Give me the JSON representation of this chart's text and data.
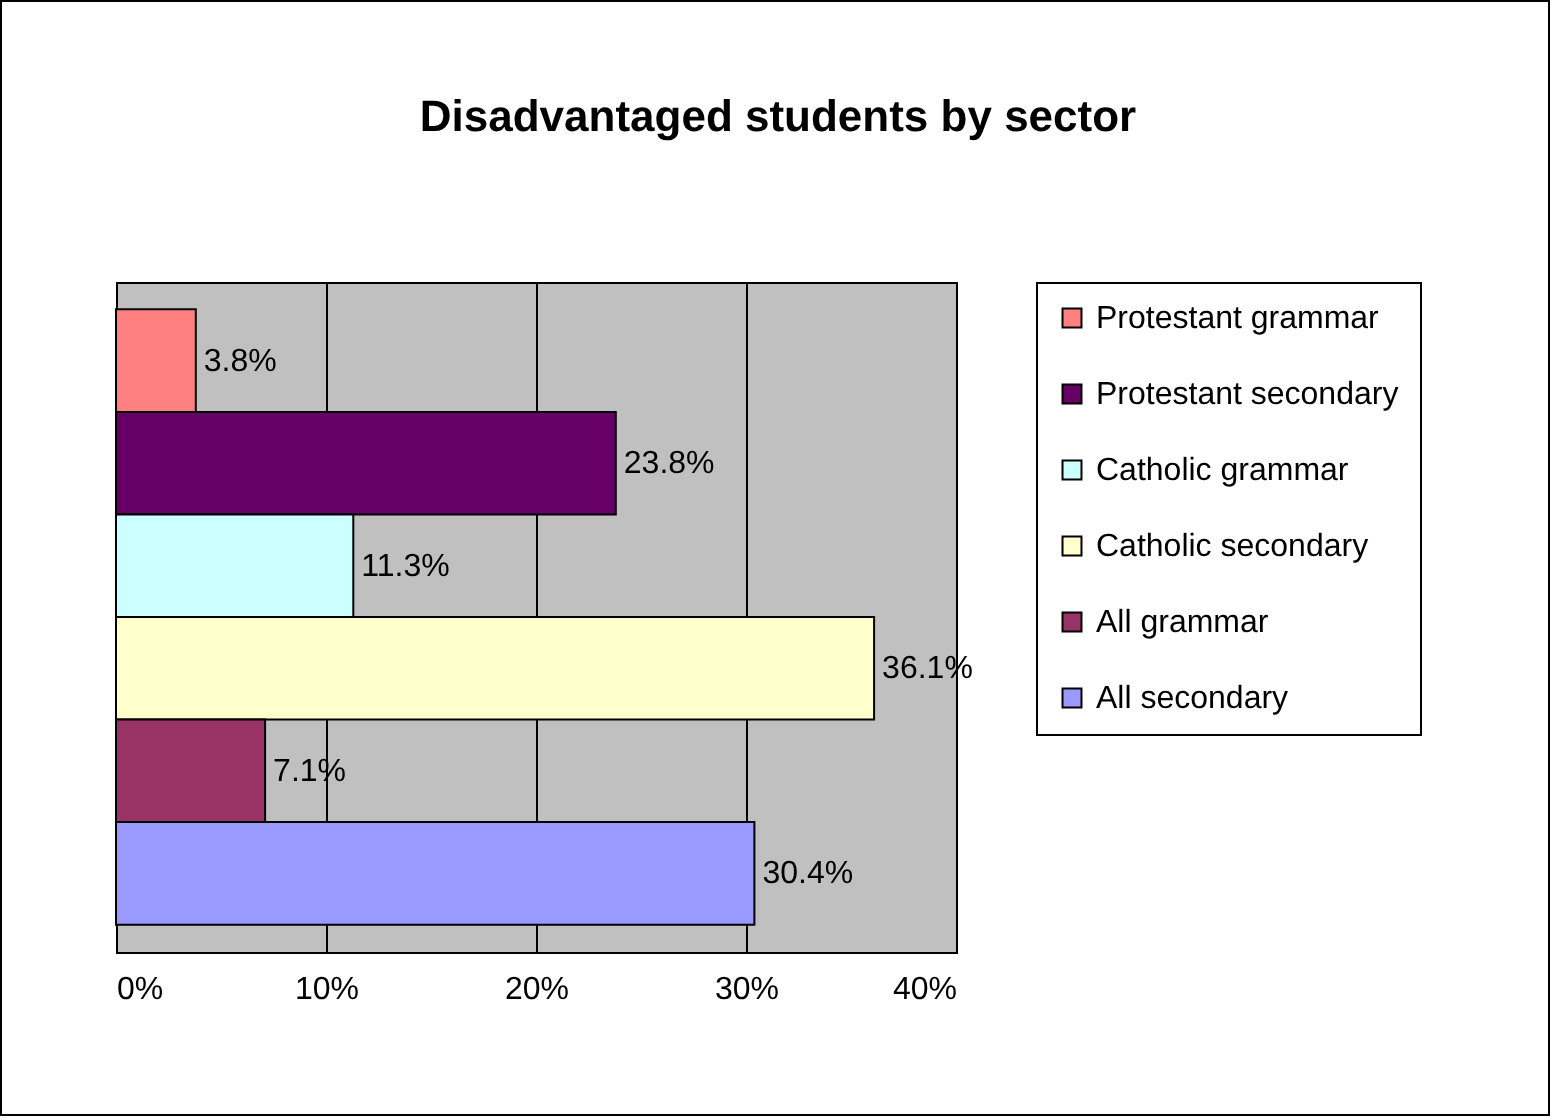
{
  "chart_data": {
    "type": "bar",
    "title": "Disadvantaged students by sector",
    "orientation": "horizontal",
    "categories": [
      null
    ],
    "series": [
      {
        "name": "Protestant grammar",
        "color": "#ff8080",
        "values": [
          3.8
        ],
        "value_labels": [
          "3.8%"
        ]
      },
      {
        "name": "Protestant secondary",
        "color": "#660066",
        "values": [
          23.8
        ],
        "value_labels": [
          "23.8%"
        ]
      },
      {
        "name": "Catholic grammar",
        "color": "#ccffff",
        "values": [
          11.3
        ],
        "value_labels": [
          "11.3%"
        ]
      },
      {
        "name": "Catholic secondary",
        "color": "#ffffcc",
        "values": [
          36.1
        ],
        "value_labels": [
          "36.1%"
        ]
      },
      {
        "name": "All grammar",
        "color": "#993366",
        "values": [
          7.1
        ],
        "value_labels": [
          "7.1%"
        ]
      },
      {
        "name": "All secondary",
        "color": "#9999ff",
        "values": [
          30.4
        ],
        "value_labels": [
          "30.4%"
        ]
      }
    ],
    "xlim": [
      0,
      40
    ],
    "xticks": [
      {
        "value": 0,
        "label": "0%"
      },
      {
        "value": 10,
        "label": "10%"
      },
      {
        "value": 20,
        "label": "20%"
      },
      {
        "value": 30,
        "label": "30%"
      },
      {
        "value": 40,
        "label": "40%"
      }
    ],
    "grid": "x",
    "legend": "right"
  }
}
